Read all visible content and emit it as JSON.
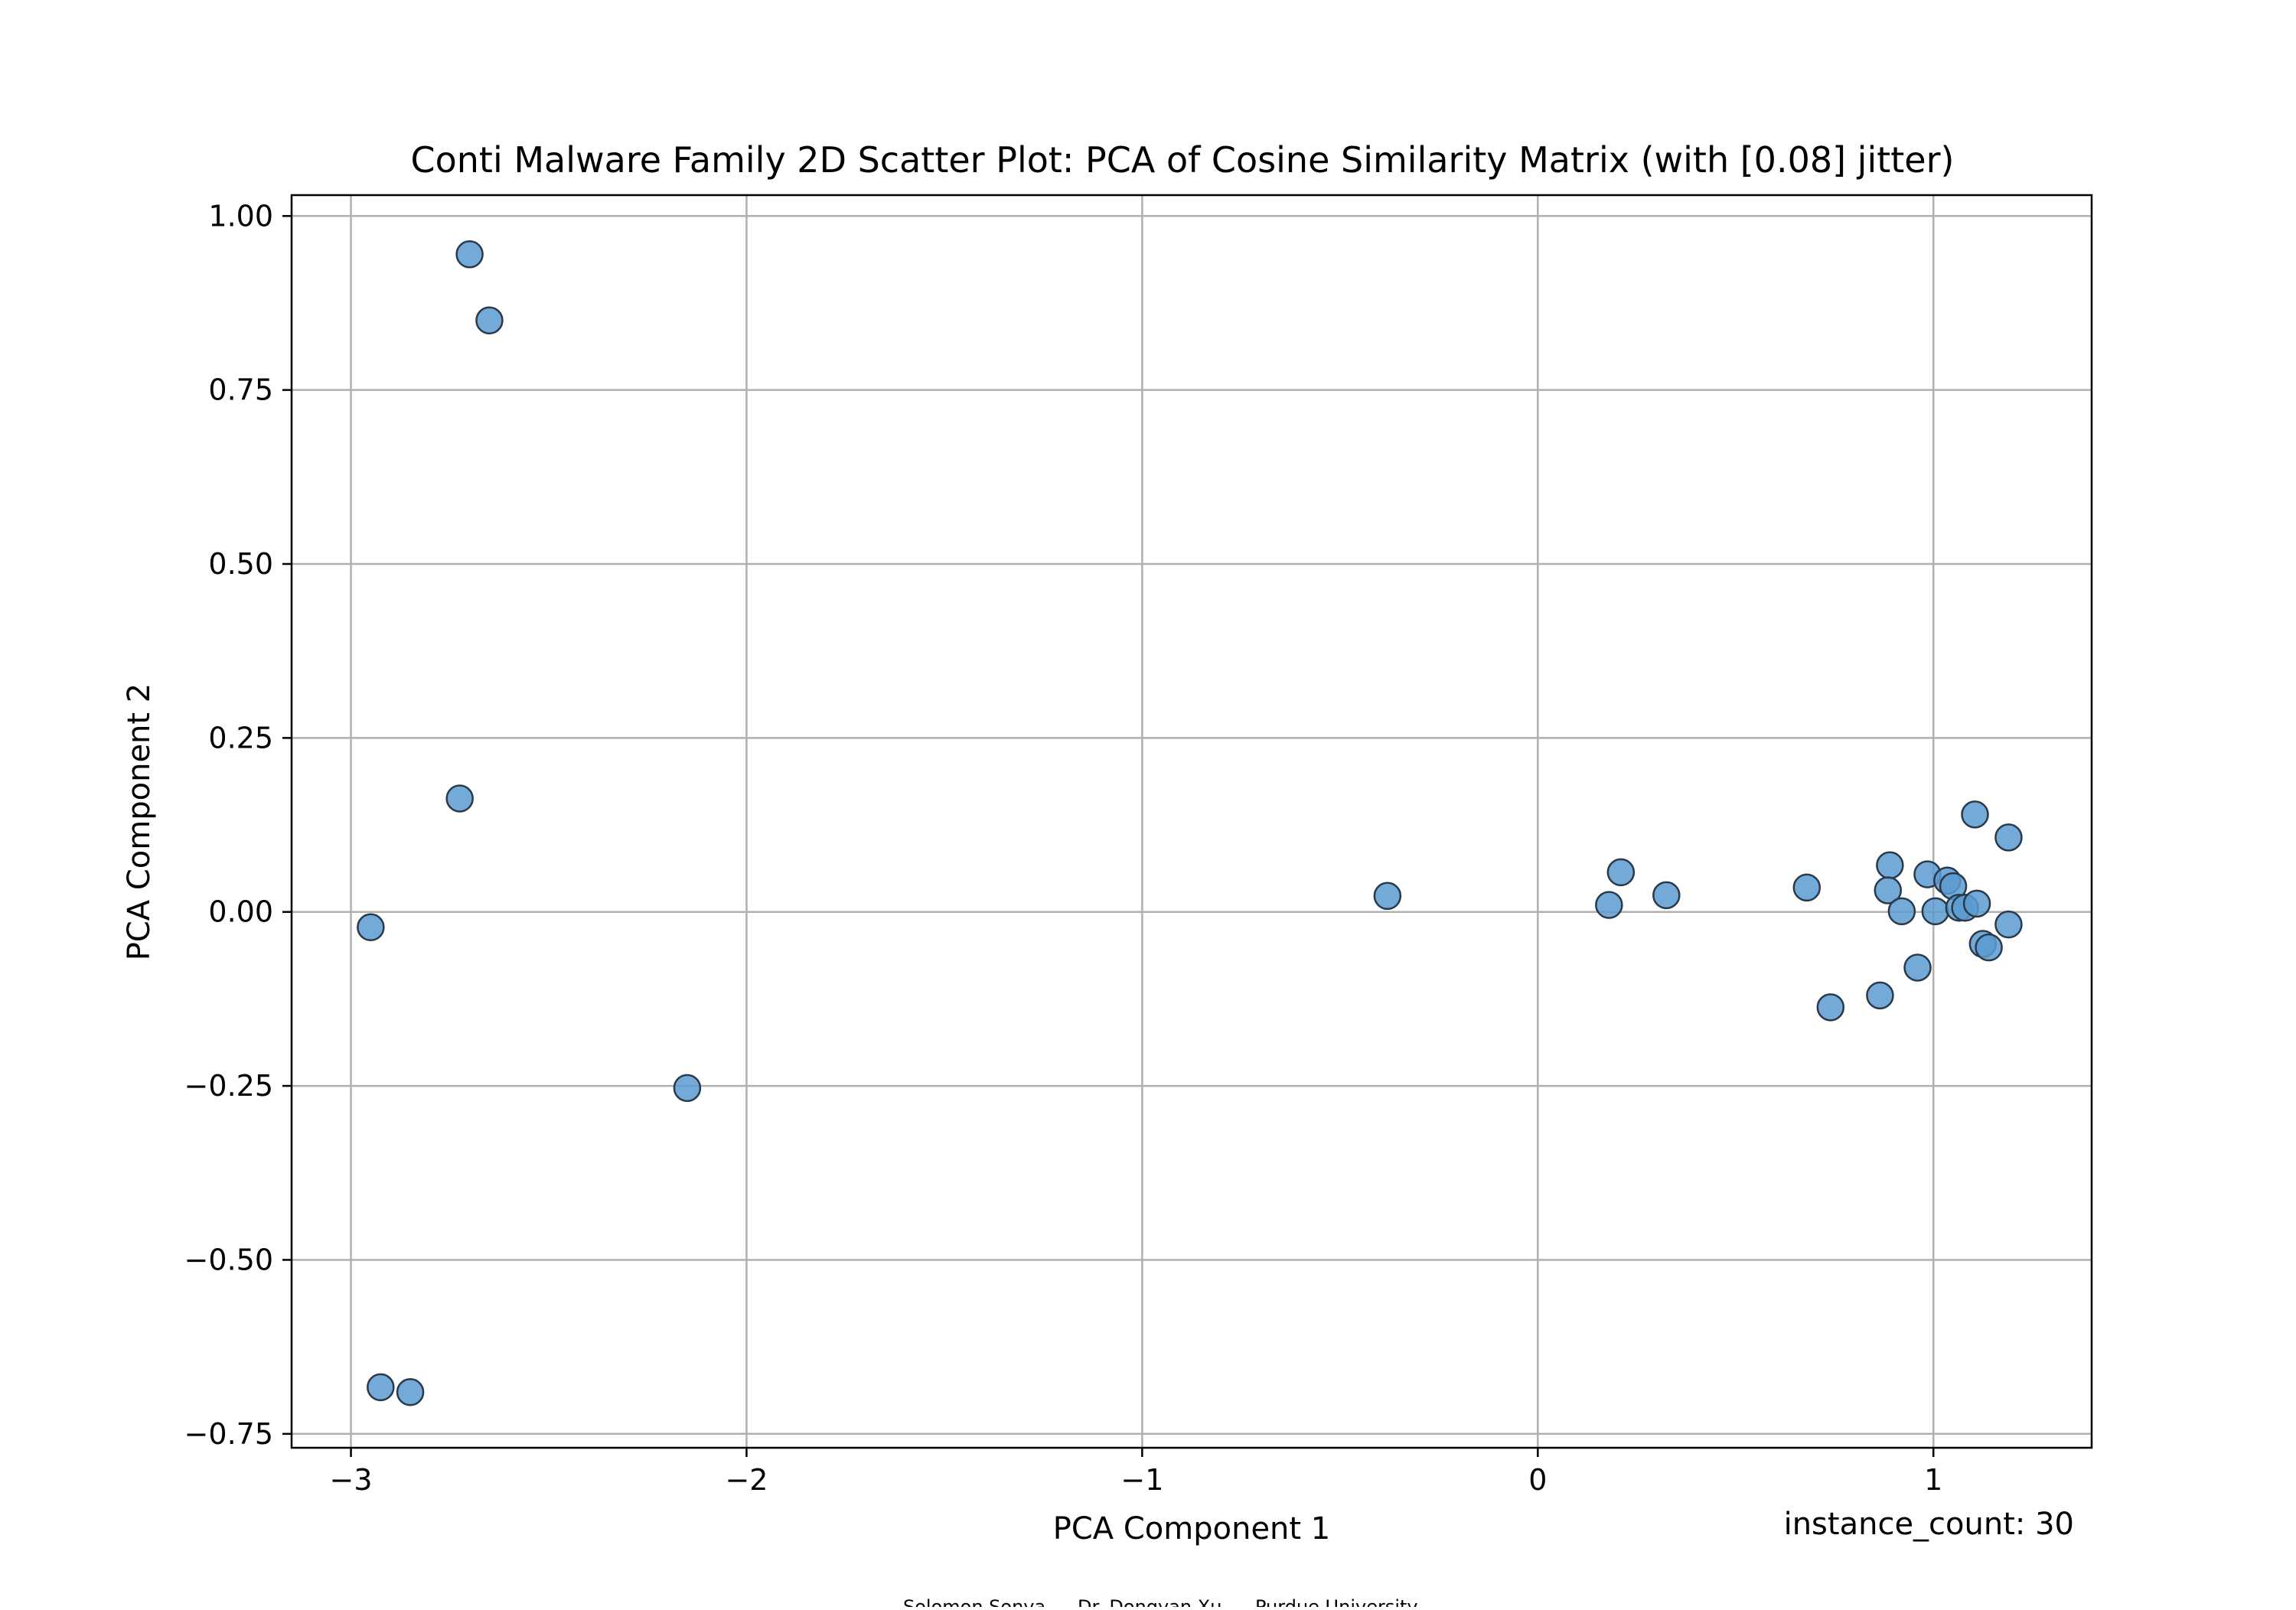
{
  "chart_data": {
    "type": "scatter",
    "title": "Conti Malware Family 2D Scatter Plot: PCA of Cosine Similarity Matrix (with [0.08] jitter)",
    "xlabel": "PCA Component 1",
    "ylabel": "PCA Component 2",
    "xlim": [
      -3.15,
      1.4
    ],
    "ylim": [
      -0.77,
      1.03
    ],
    "xticks": [
      -3,
      -2,
      -1,
      0,
      1
    ],
    "xtick_labels": [
      "−3",
      "−2",
      "−1",
      "0",
      "1"
    ],
    "yticks": [
      1.0,
      0.75,
      0.5,
      0.25,
      0.0,
      -0.25,
      -0.5,
      -0.75
    ],
    "ytick_labels": [
      "1.00",
      "0.75",
      "0.50",
      "0.25",
      "0.00",
      "−0.25",
      "−0.50",
      "−0.75"
    ],
    "grid": true,
    "marker_color": "#5b9bd0",
    "marker_edge_color": "#2a3a4a",
    "points": [
      {
        "x": -2.7,
        "y": 0.945
      },
      {
        "x": -2.65,
        "y": 0.85
      },
      {
        "x": -2.725,
        "y": 0.163
      },
      {
        "x": -2.95,
        "y": -0.022
      },
      {
        "x": -2.15,
        "y": -0.253
      },
      {
        "x": -2.925,
        "y": -0.683
      },
      {
        "x": -2.85,
        "y": -0.69
      },
      {
        "x": -0.38,
        "y": 0.023
      },
      {
        "x": 0.18,
        "y": 0.01
      },
      {
        "x": 0.21,
        "y": 0.057
      },
      {
        "x": 0.325,
        "y": 0.024
      },
      {
        "x": 0.68,
        "y": 0.035
      },
      {
        "x": 0.74,
        "y": -0.137
      },
      {
        "x": 0.865,
        "y": -0.12
      },
      {
        "x": 0.89,
        "y": 0.067
      },
      {
        "x": 0.885,
        "y": 0.031
      },
      {
        "x": 0.92,
        "y": 0.001
      },
      {
        "x": 0.96,
        "y": -0.08
      },
      {
        "x": 0.985,
        "y": 0.054
      },
      {
        "x": 1.005,
        "y": 0.001
      },
      {
        "x": 1.035,
        "y": 0.045
      },
      {
        "x": 1.05,
        "y": 0.037
      },
      {
        "x": 1.065,
        "y": 0.006
      },
      {
        "x": 1.08,
        "y": 0.006
      },
      {
        "x": 1.11,
        "y": 0.012
      },
      {
        "x": 1.105,
        "y": 0.14
      },
      {
        "x": 1.125,
        "y": -0.046
      },
      {
        "x": 1.14,
        "y": -0.051
      },
      {
        "x": 1.19,
        "y": 0.107
      },
      {
        "x": 1.19,
        "y": -0.018
      }
    ]
  },
  "annotation": "instance_count: 30",
  "credits": [
    "Solomon Sonya",
    "Dr. Dongyan Xu",
    "Purdue University"
  ]
}
